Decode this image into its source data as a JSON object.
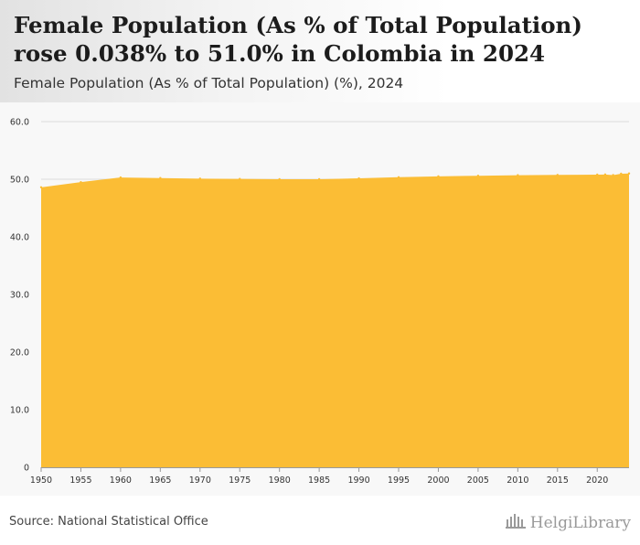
{
  "header": {
    "title": "Female Population (As % of Total Population) rose 0.038% to 51.0% in Colombia in 2024",
    "subtitle": "Female Population (As % of Total Population) (%), 2024"
  },
  "footer": {
    "source": "Source: National Statistical Office",
    "brand": "HelgiLibrary"
  },
  "colors": {
    "fill": "#fbbd35",
    "grid": "#dddddd",
    "background": "#f8f8f8"
  },
  "chart_data": {
    "type": "area",
    "title": "Female Population (As % of Total Population) (%), 2024",
    "xlabel": "",
    "ylabel": "",
    "xlim": [
      1950,
      2024
    ],
    "ylim": [
      0,
      60
    ],
    "yticks": [
      "0",
      "10.0",
      "20.0",
      "30.0",
      "40.0",
      "50.0",
      "60.0"
    ],
    "xticks": [
      "1950",
      "1955",
      "1960",
      "1965",
      "1970",
      "1975",
      "1980",
      "1985",
      "1990",
      "1995",
      "2000",
      "2005",
      "2010",
      "2015",
      "2020"
    ],
    "grid": true,
    "x": [
      1950,
      1955,
      1960,
      1965,
      1970,
      1975,
      1980,
      1985,
      1990,
      1995,
      2000,
      2005,
      2010,
      2015,
      2020,
      2021,
      2022,
      2023,
      2024
    ],
    "series": [
      {
        "name": "Female Population (As % of Total Population)",
        "values": [
          48.6,
          49.5,
          50.3,
          50.2,
          50.1,
          50.05,
          50.0,
          50.0,
          50.15,
          50.35,
          50.5,
          50.6,
          50.7,
          50.75,
          50.8,
          50.82,
          50.72,
          50.96,
          51.0
        ]
      }
    ]
  }
}
